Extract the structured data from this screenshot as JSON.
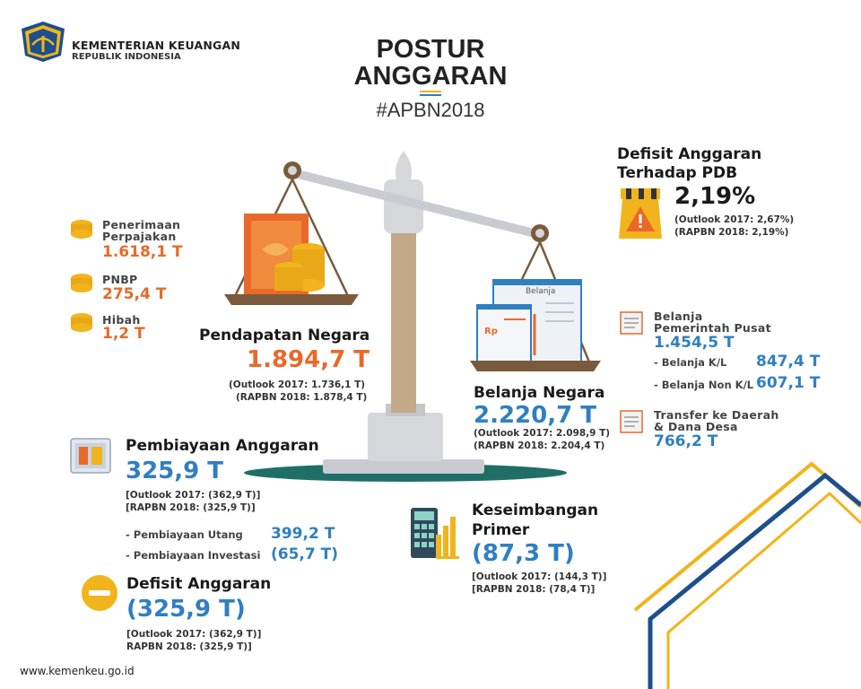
{
  "header": {
    "ministry_name": "KEMENTERIAN KEUANGAN",
    "ministry_sub": "REPUBLIK INDONESIA",
    "title_line1": "POSTUR",
    "title_line2": "ANGGARAN",
    "hashtag": "#APBN2018"
  },
  "revenue_sources": [
    {
      "label_line1": "Penerimaan",
      "label_line2": "Perpajakan",
      "value": "1.618,1 T"
    },
    {
      "label_line1": "PNBP",
      "label_line2": "",
      "value": "275,4 T"
    },
    {
      "label_line1": "Hibah",
      "label_line2": "",
      "value": "1,2 T"
    }
  ],
  "pendapatan": {
    "heading": "Pendapatan Negara",
    "value": "1.894,7 T",
    "outlook": "(Outlook 2017: 1.736,1 T)",
    "rapbn": "(RAPBN 2018: 1.878,4 T)"
  },
  "scale_label": "Belanja",
  "belanja": {
    "heading": "Belanja Negara",
    "value": "2.220,7 T",
    "outlook": "(Outlook 2017: 2.098,9 T)",
    "rapbn": "(RAPBN 2018: 2.204,4 T)"
  },
  "defisit_pdb": {
    "heading_line1": "Defisit Anggaran",
    "heading_line2": "Terhadap PDB",
    "value": "2,19%",
    "outlook": "(Outlook 2017: 2,67%)",
    "rapbn": "(RAPBN 2018: 2,19%)"
  },
  "belanja_pusat": {
    "label_line1": "Belanja",
    "label_line2": "Pemerintah Pusat",
    "value": "1.454,5 T",
    "items": [
      {
        "label": "- Belanja K/L",
        "value": "847,4 T"
      },
      {
        "label": "- Belanja Non K/L",
        "value": "607,1 T"
      }
    ]
  },
  "transfer": {
    "label_line1": "Transfer ke Daerah",
    "label_line2": "& Dana Desa",
    "value": "766,2 T"
  },
  "pembiayaan": {
    "heading": "Pembiayaan Anggaran",
    "value": "325,9 T",
    "outlook": "[Outlook 2017: (362,9 T)]",
    "rapbn": "[RAPBN 2018: (325,9 T)]",
    "items": [
      {
        "label": "- Pembiayaan Utang",
        "value": "399,2 T"
      },
      {
        "label": "- Pembiayaan Investasi",
        "value": "(65,7 T)"
      }
    ]
  },
  "keseimbangan": {
    "heading_line1": "Keseimbangan",
    "heading_line2": "Primer",
    "value": "(87,3 T)",
    "outlook": "[Outlook 2017: (144,3 T)]",
    "rapbn": "[RAPBN 2018: (78,4 T)]"
  },
  "defisit": {
    "heading": "Defisit Anggaran",
    "value": "(325,9 T)",
    "outlook": "[Outlook 2017: (362,9 T)]",
    "rapbn": "RAPBN 2018: (325,9 T)]"
  },
  "footer": {
    "url": "www.kemenkeu.go.id"
  },
  "colors": {
    "orange": "#e8692a",
    "blue": "#2f7fc1",
    "gold": "#f2b41c",
    "teal": "#1f6f66",
    "navy": "#1d4f8c"
  }
}
